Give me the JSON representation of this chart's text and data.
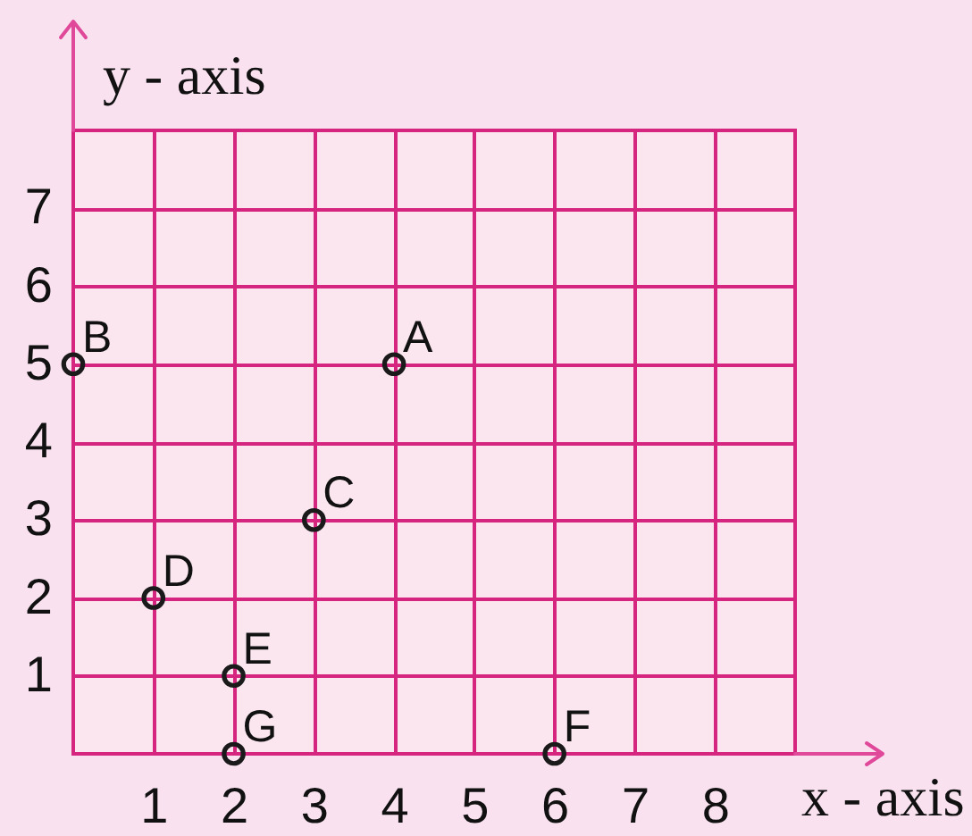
{
  "chart_data": {
    "type": "scatter",
    "xlabel": "x - axis",
    "ylabel": "y - axis",
    "x": [
      4,
      0,
      3,
      1,
      2,
      6,
      2
    ],
    "series": [
      {
        "color": "#1a1a1a",
        "values": [
          5,
          5,
          3,
          2,
          1,
          0,
          0
        ]
      }
    ],
    "marker": "circle",
    "grid": true,
    "xlim": [
      0,
      9
    ],
    "ylim": [
      0,
      8
    ],
    "xticks": [
      1,
      2,
      3,
      4,
      5,
      6,
      7,
      8
    ],
    "yticks": [
      1,
      2,
      3,
      4,
      5,
      6,
      7
    ],
    "annotations": [
      {
        "text": "A",
        "x": 4,
        "y": 5
      },
      {
        "text": "B",
        "x": 0,
        "y": 5
      },
      {
        "text": "C",
        "x": 3,
        "y": 3
      },
      {
        "text": "D",
        "x": 1,
        "y": 2
      },
      {
        "text": "E",
        "x": 2,
        "y": 1
      },
      {
        "text": "F",
        "x": 6,
        "y": 0
      },
      {
        "text": "G",
        "x": 2,
        "y": 0
      }
    ]
  }
}
